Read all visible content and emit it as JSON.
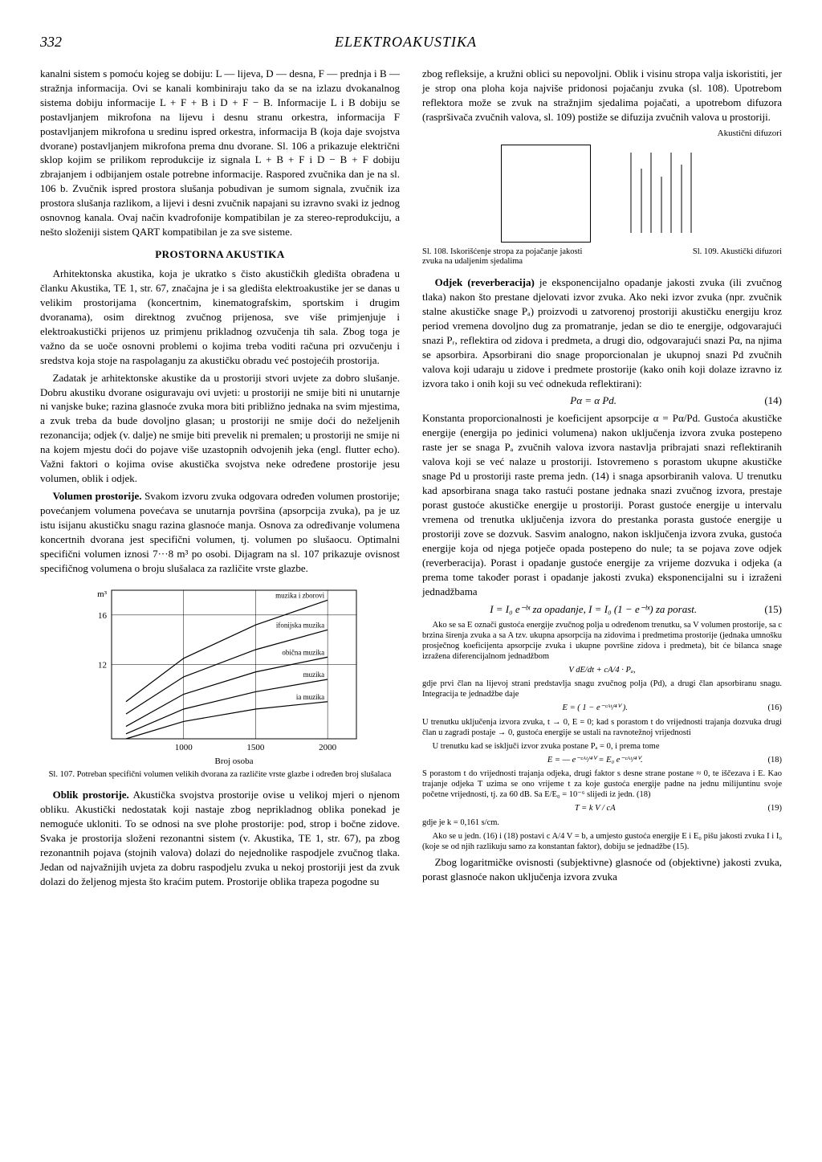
{
  "page_number": "332",
  "running_title": "ELEKTROAKUSTIKA",
  "left": {
    "p1": "kanalni sistem s pomoću kojeg se dobiju: L — lijeva, D — desna, F — prednja i B — stražnja informacija. Ovi se kanali kombiniraju tako da se na izlazu dvokanalnog sistema dobiju informacije L + F + B i D + F − B. Informacije L i B dobiju se postavljanjem mikrofona na lijevu i desnu stranu orkestra, informacija F postavljanjem mikrofona u sredinu ispred orkestra, informacija B (koja daje svojstva dvorane) postavljanjem mikrofona prema dnu dvorane. Sl. 106 a prikazuje električni sklop kojim se prilikom reprodukcije iz signala L + B + F i D − B + F dobiju zbrajanjem i odbijanjem ostale potrebne informacije. Raspored zvučnika dan je na sl. 106 b. Zvučnik ispred prostora slušanja pobudivan je sumom signala, zvučnik iza prostora slušanja razlikom, a lijevi i desni zvučnik napajani su izravno svaki iz jednog osnovnog kanala. Ovaj način kvadrofonije kompatibilan je za stereo-reprodukciju, a nešto složeniji sistem QART kompatibilan je za sve sisteme.",
    "section_heading": "PROSTORNA AKUSTIKA",
    "p2": "Arhitektonska akustika, koja je ukratko s čisto akustičkih gledišta obrađena u članku Akustika, TE 1, str. 67, značajna je i sa gledišta elektroakustike jer se danas u velikim prostorijama (koncertnim, kinematografskim, sportskim i drugim dvoranama), osim direktnog zvučnog prijenosa, sve više primjenjuje i elektroakustički prijenos uz primjenu prikladnog ozvučenja tih sala. Zbog toga je važno da se uoče osnovni problemi o kojima treba voditi računa pri ozvučenju i sredstva koja stoje na raspolaganju za akustičku obradu već postojećih prostorija.",
    "p3": "Zadatak je arhitektonske akustike da u prostoriji stvori uvjete za dobro slušanje. Dobru akustiku dvorane osiguravaju ovi uvjeti: u prostoriji ne smije biti ni unutarnje ni vanjske buke; razina glasnoće zvuka mora biti približno jednaka na svim mjestima, a zvuk treba da bude dovoljno glasan; u prostoriji ne smije doći do neželjenih rezonancija; odjek (v. dalje) ne smije biti prevelik ni premalen; u prostoriji ne smije ni na kojem mjestu doći do pojave više uzastopnih odvojenih jeka (engl. flutter echo). Važni faktori o kojima ovise akustička svojstva neke određene prostorije jesu volumen, oblik i odjek.",
    "p4_label": "Volumen prostorije.",
    "p4": " Svakom izvoru zvuka odgovara određen volumen prostorije; povećanjem volumena povećava se unutarnja površina (apsorpcija zvuka), pa je uz istu isijanu akustičku snagu razina glasnoće manja. Osnova za određivanje volumena koncertnih dvorana jest specifični volumen, tj. volumen po slušaocu. Optimalni specifični volumen iznosi 7···8 m³ po osobi. Dijagram na sl. 107 prikazuje ovisnost specifičnog volumena o broju slušalaca za različite vrste glazbe.",
    "chart": {
      "type": "line",
      "xlabel": "Broj osoba",
      "ylabel_unit": "m³",
      "xlim": [
        500,
        2200
      ],
      "ylim": [
        6,
        18
      ],
      "xticks": [
        1000,
        1500,
        2000
      ],
      "yticks": [
        12,
        16
      ],
      "background": "#ffffff",
      "axis_color": "#000000",
      "line_color": "#000000",
      "series": [
        {
          "label": "muzika i zborovi",
          "points": [
            [
              600,
              9.0
            ],
            [
              1000,
              12.5
            ],
            [
              1500,
              15.2
            ],
            [
              2000,
              17.2
            ]
          ]
        },
        {
          "label": "ifonijska muzika",
          "points": [
            [
              600,
              8.0
            ],
            [
              1000,
              11.0
            ],
            [
              1500,
              13.2
            ],
            [
              2000,
              14.8
            ]
          ]
        },
        {
          "label": "obična muzika",
          "points": [
            [
              600,
              7.0
            ],
            [
              1000,
              9.6
            ],
            [
              1500,
              11.4
            ],
            [
              2000,
              12.6
            ]
          ]
        },
        {
          "label": "muzika",
          "points": [
            [
              600,
              6.4
            ],
            [
              1000,
              8.4
            ],
            [
              1500,
              9.8
            ],
            [
              2000,
              10.8
            ]
          ]
        },
        {
          "label": "ia muzika",
          "points": [
            [
              600,
              6.0
            ],
            [
              1000,
              7.4
            ],
            [
              1500,
              8.4
            ],
            [
              2000,
              9.0
            ]
          ]
        }
      ]
    },
    "fig107_caption": "Sl. 107. Potreban specifični volumen velikih dvorana za različite vrste glazbe i određen broj slušalaca",
    "p5_label": "Oblik prostorije.",
    "p5": " Akustička svojstva prostorije ovise u velikoj mjeri o njenom obliku. Akustički nedostatak koji nastaje zbog neprikladnog oblika ponekad je nemoguće ukloniti. To se odnosi na sve plohe prostorije: pod, strop i bočne zidove. Svaka je prostorija složeni rezonantni sistem (v. Akustika, TE 1, str. 67), pa zbog rezonantnih pojava (stojnih valova) dolazi do nejednolike raspodjele zvučnog tlaka. Jedan od najvažnijih uvjeta za dobru raspodjelu zvuka u nekoj prostoriji jest da zvuk dolazi do željenog mjesta što kraćim putem. Prostorije oblika trapeza pogodne su"
  },
  "right": {
    "p1": "zbog refleksije, a kružni oblici su nepovoljni. Oblik i visinu stropa valja iskoristiti, jer je strop ona ploha koja najviše pridonosi pojačanju zvuka (sl. 108). Upotrebom reflektora može se zvuk na stražnjim sjedalima pojačati, a upotrebom difuzora (raspršivača zvučnih valova, sl. 109) postiže se difuzija zvučnih valova u prostoriji.",
    "fig_label_right": "Akustični difuzori",
    "fig108_caption": "Sl. 108. Iskorišćenje stropa za pojačanje jakosti zvuka na udaljenim sjedalima",
    "fig109_caption": "Sl. 109. Akustički difuzori",
    "p2_label": "Odjek (reverberacija)",
    "p2": " je eksponencijalno opadanje jakosti zvuka (ili zvučnog tlaka) nakon što prestane djelovati izvor zvuka. Ako neki izvor zvuka (npr. zvučnik stalne akustičke snage Pₐ) proizvodi u zatvorenoj prostoriji akustičku energiju kroz period vremena dovoljno dug za promatranje, jedan se dio te energije, odgovarajući snazi Pᵣ, reflektira od zidova i predmeta, a drugi dio, odgovarajući snazi Pα, na njima se apsorbira. Apsorbirani dio snage proporcionalan je ukupnoj snazi Pd zvučnih valova koji udaraju u zidove i predmete prostorije (kako onih koji dolaze izravno iz izvora tako i onih koji su već odnekuda reflektirani):",
    "eq14": "Pα = α Pd.",
    "eq14_num": "(14)",
    "p3": "Konstanta proporcionalnosti je koeficijent apsorpcije α = Pα/Pd. Gustoća akustičke energije (energija po jedinici volumena) nakon uključenja izvora zvuka postepeno raste jer se snaga Pₐ zvučnih valova izvora nastavlja pribrajati snazi reflektiranih valova koji se već nalaze u prostoriji. Istovremeno s porastom ukupne akustičke snage Pd u prostoriji raste prema jedn. (14) i snaga apsorbiranih valova. U trenutku kad apsorbirana snaga tako rastući postane jednaka snazi zvučnog izvora, prestaje porast gustoće akustičke energije u prostoriji. Porast gustoće energije u intervalu vremena od trenutka uključenja izvora do prestanka porasta gustoće energije u prostoriji zove se dozvuk. Sasvim analogno, nakon isključenja izvora zvuka, gustoća energije koja od njega potječe opada postepeno do nule; ta se pojava zove odjek (reverberacija). Porast i opadanje gustoće energije za vrijeme dozvuka i odjeka (a prema tome također porast i opadanje jakosti zvuka) eksponencijalni su i izraženi jednadžbama",
    "eq15": "I = I₀ e⁻ᵇᵗ  za opadanje,  I = I₀ (1 − e⁻ᵇᵗ)  za porast.",
    "eq15_num": "(15)",
    "small1": "Ako se sa E označi gustoća energije zvučnog polja u određenom trenutku, sa V volumen prostorije, sa c brzina širenja zvuka a sa A tzv. ukupna apsorpcija na zidovima i predmetima prostorije (jednaka umnošku prosječnog koeficijenta apsorpcije zvuka i ukupne površine zidova i predmeta), bit će bilanca snage izražena diferencijalnom jednadžbom",
    "eq_diff": "V dE/dt + cA/4 · Pₐ,",
    "small2": "gdje prvi član na lijevoj strani predstavlja snagu zvučnog polja (Pd), a drugi član apsorbiranu snagu. Integracija te jednadžbe daje",
    "eq16": "E =   ( 1 − e⁻ᶜᴬᵗ/⁴ⱽ ).",
    "eq16_num": "(16)",
    "small3": "U trenutku uključenja izvora zvuka, t → 0, E = 0; kad s porastom t do vrijednosti trajanja dozvuka drugi član u zagradi postaje → 0, gustoća energije se ustali na ravnotežnoj vrijednosti",
    "small4": "U trenutku kad se isključi izvor zvuka postane Pₐ = 0, i prema tome",
    "eq18": "E = —  e⁻ᶜᴬᵗ/⁴ⱽ = E₀ e⁻ᶜᴬᵗ/⁴ⱽ.",
    "eq18_num": "(18)",
    "small5": "S porastom t do vrijednosti trajanja odjeka, drugi faktor s desne strane postane ≈ 0, te iščezava i E. Kao trajanje odjeka T uzima se ono vrijeme t za koje gustoća energije padne na jednu milijuntinu svoje početne vrijednosti, tj. za 60 dB. Sa E/E₀ = 10⁻⁶ slijedi iz jedn. (18)",
    "eq19": "T = k V / cA",
    "eq19_num": "(19)",
    "small6": "gdje je k = 0,161 s/cm.",
    "small7": "Ako se u jedn. (16) i (18) postavi c A/4 V = b, a umjesto gustoća energije E i E₀ pišu jakosti zvuka I i I₀ (koje se od njih razlikuju samo za konstantan faktor), dobiju se jednadžbe (15).",
    "p4": "Zbog logaritmičke ovisnosti (subjektivne) glasnoće od (objektivne) jakosti zvuka, porast glasnoće nakon uključenja izvora zvuka"
  }
}
